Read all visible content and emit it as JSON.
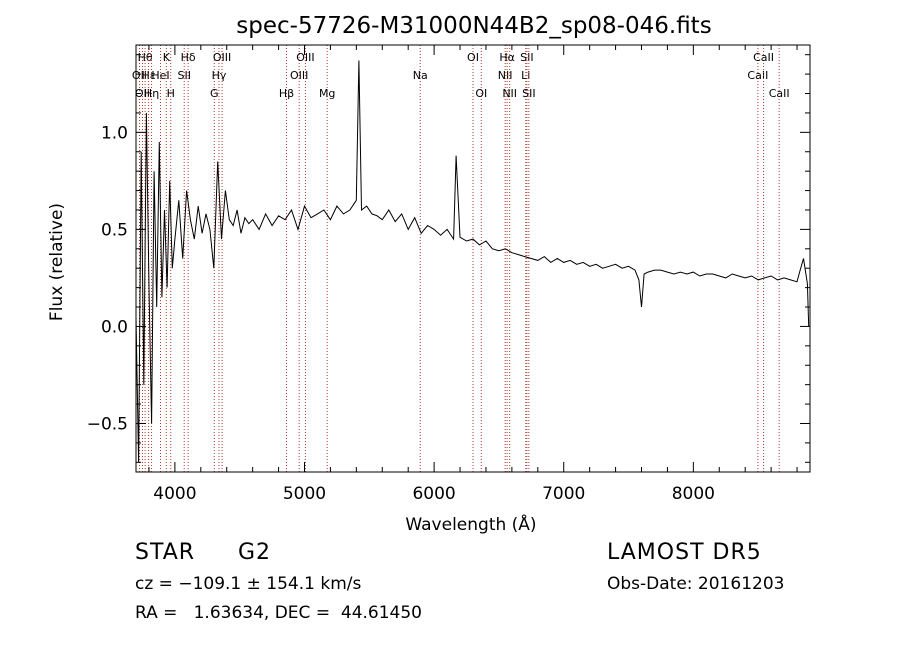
{
  "chart_data": {
    "type": "line",
    "title": "spec-57726-M31000N44B2_sp08-046.fits",
    "xlabel": "Wavelength (Å)",
    "ylabel": "Flux (relative)",
    "xlim": [
      3700,
      8900
    ],
    "ylim": [
      -0.75,
      1.45
    ],
    "xticks": [
      4000,
      5000,
      6000,
      7000,
      8000
    ],
    "yticks": [
      -0.5,
      0.0,
      0.5,
      1.0
    ],
    "ytick_labels": [
      "−0.5",
      "0.0",
      "0.5",
      "1.0"
    ],
    "grid": false,
    "line_color": "#000000",
    "marker_color": "#b03a2e",
    "line_markers": [
      {
        "x": 3727,
        "label": "OII",
        "row": 1
      },
      {
        "x": 3750,
        "label": "OII",
        "row": 2
      },
      {
        "x": 3770,
        "label": "Hθ",
        "row": 0
      },
      {
        "x": 3797,
        "label": "Hε",
        "row": 1
      },
      {
        "x": 3820,
        "label": "Hη",
        "row": 2
      },
      {
        "x": 3889,
        "label": "HeI",
        "row": 1
      },
      {
        "x": 3934,
        "label": "K",
        "row": 0
      },
      {
        "x": 3968,
        "label": "H",
        "row": 2
      },
      {
        "x": 4072,
        "label": "SII",
        "row": 1
      },
      {
        "x": 4102,
        "label": "Hδ",
        "row": 0
      },
      {
        "x": 4304,
        "label": "G",
        "row": 2
      },
      {
        "x": 4340,
        "label": "Hγ",
        "row": 1
      },
      {
        "x": 4364,
        "label": "OIII",
        "row": 0
      },
      {
        "x": 4861,
        "label": "Hβ",
        "row": 2
      },
      {
        "x": 4959,
        "label": "OIII",
        "row": 1
      },
      {
        "x": 5007,
        "label": "OIII",
        "row": 0
      },
      {
        "x": 5175,
        "label": "Mg",
        "row": 2
      },
      {
        "x": 5893,
        "label": "Na",
        "row": 1
      },
      {
        "x": 6300,
        "label": "OI",
        "row": 0
      },
      {
        "x": 6364,
        "label": "OI",
        "row": 2
      },
      {
        "x": 6548,
        "label": "NII",
        "row": 1
      },
      {
        "x": 6563,
        "label": "Hα",
        "row": 0
      },
      {
        "x": 6583,
        "label": "NII",
        "row": 2
      },
      {
        "x": 6707,
        "label": "Li",
        "row": 1
      },
      {
        "x": 6716,
        "label": "SII",
        "row": 0
      },
      {
        "x": 6731,
        "label": "SII",
        "row": 2
      },
      {
        "x": 8498,
        "label": "CaII",
        "row": 1
      },
      {
        "x": 8542,
        "label": "CaII",
        "row": 0
      },
      {
        "x": 8662,
        "label": "CaII",
        "row": 2
      }
    ],
    "series": [
      {
        "x": [
          3700,
          3720,
          3740,
          3760,
          3780,
          3800,
          3820,
          3840,
          3860,
          3880,
          3900,
          3920,
          3940,
          3960,
          3980,
          4000,
          4030,
          4060,
          4090,
          4120,
          4150,
          4180,
          4210,
          4240,
          4270,
          4300,
          4330,
          4360,
          4390,
          4420,
          4450,
          4480,
          4510,
          4540,
          4570,
          4600,
          4650,
          4700,
          4750,
          4800,
          4850,
          4900,
          4950,
          5000,
          5050,
          5100,
          5150,
          5200,
          5250,
          5300,
          5350,
          5400,
          5420,
          5440,
          5480,
          5520,
          5560,
          5600,
          5650,
          5700,
          5750,
          5800,
          5850,
          5900,
          5950,
          6000,
          6050,
          6100,
          6150,
          6170,
          6200,
          6250,
          6300,
          6350,
          6400,
          6450,
          6500,
          6550,
          6600,
          6650,
          6700,
          6750,
          6800,
          6850,
          6900,
          6950,
          7000,
          7050,
          7100,
          7150,
          7200,
          7250,
          7300,
          7350,
          7400,
          7450,
          7500,
          7550,
          7580,
          7600,
          7620,
          7650,
          7700,
          7750,
          7800,
          7850,
          7900,
          7950,
          8000,
          8050,
          8100,
          8150,
          8200,
          8250,
          8300,
          8350,
          8400,
          8450,
          8500,
          8550,
          8600,
          8650,
          8700,
          8750,
          8800,
          8820,
          8850,
          8880,
          8890
        ],
        "y": [
          0.05,
          -0.7,
          0.9,
          -0.3,
          1.1,
          0.2,
          -0.5,
          0.8,
          0.1,
          0.95,
          0.15,
          0.6,
          0.2,
          0.75,
          0.3,
          0.45,
          0.65,
          0.35,
          0.7,
          0.55,
          0.45,
          0.62,
          0.48,
          0.58,
          0.5,
          0.3,
          0.85,
          0.45,
          0.7,
          0.55,
          0.52,
          0.6,
          0.48,
          0.56,
          0.53,
          0.55,
          0.5,
          0.58,
          0.52,
          0.57,
          0.55,
          0.6,
          0.5,
          0.62,
          0.56,
          0.58,
          0.6,
          0.55,
          0.62,
          0.58,
          0.6,
          0.65,
          1.37,
          0.6,
          0.62,
          0.58,
          0.57,
          0.55,
          0.6,
          0.54,
          0.58,
          0.5,
          0.56,
          0.48,
          0.52,
          0.5,
          0.47,
          0.5,
          0.45,
          0.88,
          0.46,
          0.44,
          0.45,
          0.42,
          0.44,
          0.4,
          0.39,
          0.4,
          0.38,
          0.37,
          0.36,
          0.35,
          0.34,
          0.36,
          0.33,
          0.35,
          0.33,
          0.34,
          0.32,
          0.33,
          0.31,
          0.32,
          0.3,
          0.31,
          0.32,
          0.3,
          0.31,
          0.29,
          0.24,
          0.1,
          0.27,
          0.28,
          0.29,
          0.29,
          0.28,
          0.27,
          0.28,
          0.27,
          0.28,
          0.26,
          0.27,
          0.27,
          0.26,
          0.25,
          0.27,
          0.26,
          0.25,
          0.26,
          0.24,
          0.25,
          0.26,
          0.24,
          0.25,
          0.24,
          0.23,
          0.28,
          0.35,
          0.22,
          0.0
        ]
      }
    ]
  },
  "info": {
    "object_class": "STAR",
    "subclass": "G2",
    "survey": "LAMOST DR5",
    "redshift": "cz = −109.1 ± 154.1 km/s",
    "obs_date": "Obs-Date: 20161203",
    "coords": "RA =   1.63634, DEC =  44.61450"
  }
}
